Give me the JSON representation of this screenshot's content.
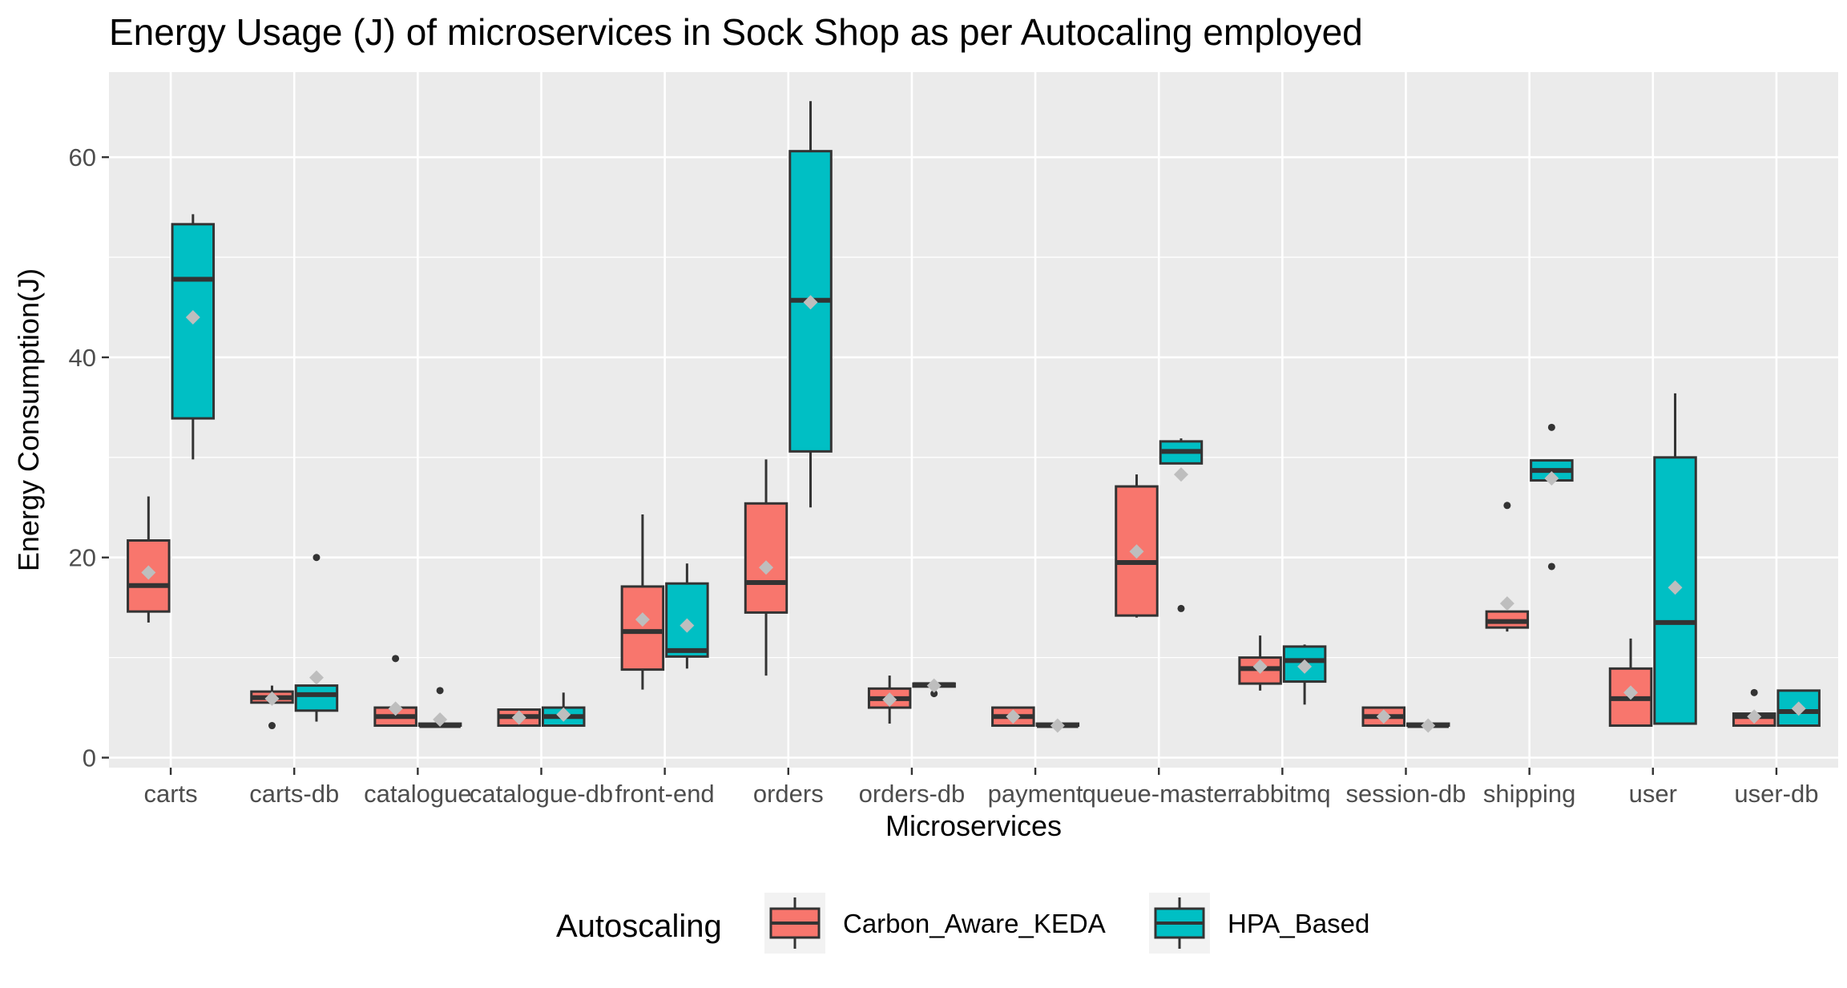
{
  "chart_data": {
    "type": "boxplot",
    "title": "Energy Usage (J) of microservices in Sock Shop as per Autocaling employed",
    "xlabel": "Microservices",
    "ylabel": "Energy Consumption(J)",
    "ylim": [
      -1,
      68.5
    ],
    "yticks": [
      0,
      20,
      40,
      60
    ],
    "grid": true,
    "legend_position": "bottom",
    "legend": {
      "title": "Autoscaling",
      "entries": [
        "Carbon_Aware_KEDA",
        "HPA_Based"
      ]
    },
    "colors": {
      "Carbon_Aware_KEDA": "#F8766D",
      "HPA_Based": "#00BFC4",
      "panel": "#EBEBEB",
      "grid": "#FFFFFF",
      "box_line": "#333333",
      "mean_marker": "#BEBEBE",
      "axis_text": "#4D4D4D"
    },
    "categories": [
      "carts",
      "carts-db",
      "catalogue",
      "catalogue-db",
      "front-end",
      "orders",
      "orders-db",
      "payment",
      "queue-master",
      "rabbitmq",
      "session-db",
      "shipping",
      "user",
      "user-db"
    ],
    "series": [
      {
        "name": "Carbon_Aware_KEDA",
        "boxes": [
          {
            "min": 13.5,
            "q1": 14.6,
            "median": 17.2,
            "q3": 21.7,
            "max": 26.1,
            "mean": 18.5,
            "outliers": []
          },
          {
            "min": 5.5,
            "q1": 5.5,
            "median": 6.0,
            "q3": 6.6,
            "max": 7.2,
            "mean": 5.9,
            "outliers": [
              3.2
            ]
          },
          {
            "min": 3.2,
            "q1": 3.2,
            "median": 4.1,
            "q3": 5.0,
            "max": 5.0,
            "mean": 4.9,
            "outliers": [
              9.9
            ]
          },
          {
            "min": 3.2,
            "q1": 3.2,
            "median": 4.1,
            "q3": 4.8,
            "max": 4.8,
            "mean": 4.0,
            "outliers": []
          },
          {
            "min": 6.8,
            "q1": 8.8,
            "median": 12.6,
            "q3": 17.1,
            "max": 24.3,
            "mean": 13.8,
            "outliers": []
          },
          {
            "min": 8.2,
            "q1": 14.5,
            "median": 17.5,
            "q3": 25.4,
            "max": 29.8,
            "mean": 19.0,
            "outliers": []
          },
          {
            "min": 3.4,
            "q1": 5.0,
            "median": 5.9,
            "q3": 6.9,
            "max": 8.2,
            "mean": 5.8,
            "outliers": []
          },
          {
            "min": 3.2,
            "q1": 3.2,
            "median": 4.1,
            "q3": 5.0,
            "max": 5.0,
            "mean": 4.1,
            "outliers": []
          },
          {
            "min": 14.0,
            "q1": 14.2,
            "median": 19.5,
            "q3": 27.1,
            "max": 28.3,
            "mean": 20.6,
            "outliers": []
          },
          {
            "min": 6.7,
            "q1": 7.4,
            "median": 8.9,
            "q3": 10.0,
            "max": 12.2,
            "mean": 9.1,
            "outliers": []
          },
          {
            "min": 3.2,
            "q1": 3.2,
            "median": 4.1,
            "q3": 5.0,
            "max": 5.0,
            "mean": 4.1,
            "outliers": []
          },
          {
            "min": 12.6,
            "q1": 13.0,
            "median": 13.6,
            "q3": 14.6,
            "max": 14.6,
            "mean": 15.4,
            "outliers": [
              25.2
            ]
          },
          {
            "min": 3.2,
            "q1": 3.2,
            "median": 5.9,
            "q3": 8.9,
            "max": 11.9,
            "mean": 6.5,
            "outliers": []
          },
          {
            "min": 3.2,
            "q1": 3.2,
            "median": 4.1,
            "q3": 4.4,
            "max": 4.4,
            "mean": 4.1,
            "outliers": [
              6.5
            ]
          }
        ]
      },
      {
        "name": "HPA_Based",
        "boxes": [
          {
            "min": 29.8,
            "q1": 33.9,
            "median": 47.8,
            "q3": 53.3,
            "max": 54.3,
            "mean": 44.0,
            "outliers": []
          },
          {
            "min": 3.6,
            "q1": 4.7,
            "median": 6.3,
            "q3": 7.2,
            "max": 7.2,
            "mean": 8.0,
            "outliers": [
              20.0
            ]
          },
          {
            "min": 3.2,
            "q1": 3.2,
            "median": 3.2,
            "q3": 3.4,
            "max": 3.4,
            "mean": 3.8,
            "outliers": [
              6.7
            ]
          },
          {
            "min": 3.2,
            "q1": 3.2,
            "median": 4.1,
            "q3": 5.0,
            "max": 6.5,
            "mean": 4.3,
            "outliers": []
          },
          {
            "min": 8.9,
            "q1": 10.1,
            "median": 10.7,
            "q3": 17.4,
            "max": 19.4,
            "mean": 13.2,
            "outliers": []
          },
          {
            "min": 25.0,
            "q1": 30.6,
            "median": 45.7,
            "q3": 60.6,
            "max": 65.6,
            "mean": 45.5,
            "outliers": []
          },
          {
            "min": 7.1,
            "q1": 7.1,
            "median": 7.3,
            "q3": 7.4,
            "max": 7.4,
            "mean": 7.2,
            "outliers": [
              6.4
            ]
          },
          {
            "min": 3.2,
            "q1": 3.2,
            "median": 3.2,
            "q3": 3.4,
            "max": 3.4,
            "mean": 3.2,
            "outliers": []
          },
          {
            "min": 29.4,
            "q1": 29.4,
            "median": 30.6,
            "q3": 31.6,
            "max": 31.9,
            "mean": 28.3,
            "outliers": [
              14.9
            ]
          },
          {
            "min": 5.3,
            "q1": 7.6,
            "median": 9.7,
            "q3": 11.1,
            "max": 11.3,
            "mean": 9.1,
            "outliers": []
          },
          {
            "min": 3.2,
            "q1": 3.2,
            "median": 3.2,
            "q3": 3.4,
            "max": 3.4,
            "mean": 3.2,
            "outliers": []
          },
          {
            "min": 27.7,
            "q1": 27.7,
            "median": 28.7,
            "q3": 29.7,
            "max": 29.7,
            "mean": 27.9,
            "outliers": [
              19.1,
              33.0
            ]
          },
          {
            "min": 3.4,
            "q1": 3.4,
            "median": 13.5,
            "q3": 30.0,
            "max": 36.4,
            "mean": 17.0,
            "outliers": []
          },
          {
            "min": 3.2,
            "q1": 3.2,
            "median": 4.6,
            "q3": 6.7,
            "max": 6.7,
            "mean": 4.9,
            "outliers": []
          }
        ]
      }
    ]
  }
}
